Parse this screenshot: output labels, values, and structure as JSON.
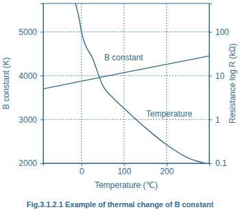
{
  "chart_data": {
    "type": "line",
    "title": "Fig.3.1.2.1 Example of thermal change of B constant",
    "x_label": "Temperature (℃)",
    "y_label": "B constant (K)",
    "y2_label": "Resistance log R (kΩ)",
    "xlim": [
      -90,
      300
    ],
    "xticks": [
      0,
      100,
      200
    ],
    "ylim": [
      2000,
      5650
    ],
    "yticks": [
      2000,
      3000,
      4000,
      5000
    ],
    "y2lim": [
      0.1,
      450
    ],
    "y2ticks": [
      0.1,
      1,
      10,
      100
    ],
    "log": "y2",
    "grid": true,
    "series": [
      {
        "name": "B constant",
        "color": "#2e6a92",
        "axis": "y",
        "x": [
          -90,
          100,
          300
        ],
        "values": [
          3700,
          4070,
          4450
        ]
      },
      {
        "name": "Temperature",
        "color": "#2e6a92",
        "axis": "y2",
        "x": [
          -14,
          -5,
          0,
          8,
          25,
          50,
          75,
          100,
          150,
          200,
          250,
          290
        ],
        "values": [
          450,
          190,
          100,
          54,
          26.5,
          6,
          3.05,
          1.8,
          0.65,
          0.265,
          0.133,
          0.1
        ]
      }
    ]
  }
}
